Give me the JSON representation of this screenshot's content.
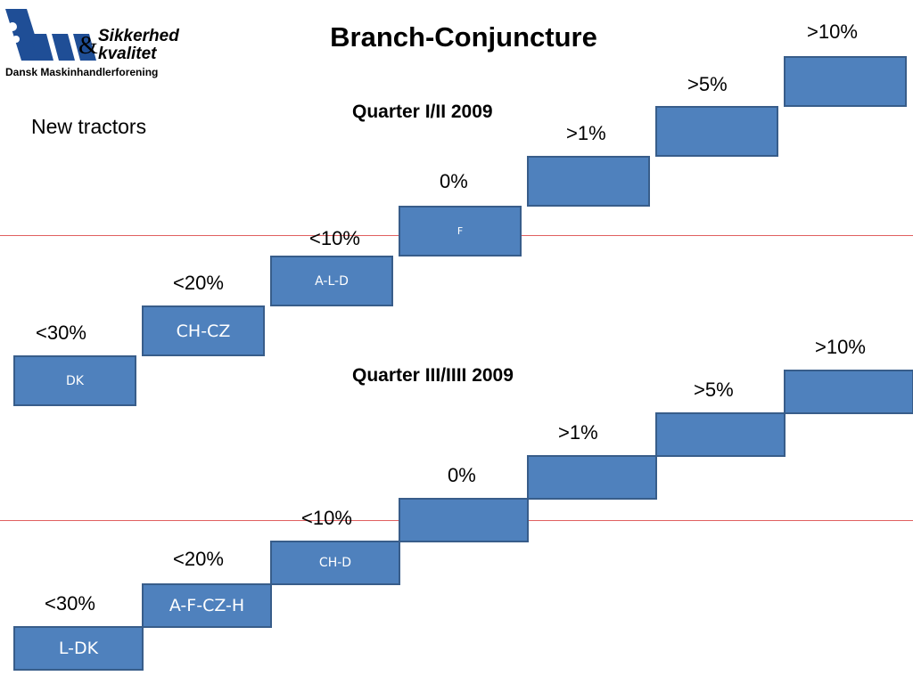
{
  "header": {
    "title": "Branch-Conjuncture",
    "logo_line1": "Sikkerhed",
    "logo_ampersand": "&",
    "logo_line2": "kvalitet",
    "logo_caption": "Dansk Maskinhandlerforening"
  },
  "category": "New tractors",
  "quarters": [
    {
      "label": "Quarter I/II 2009",
      "steps": [
        {
          "threshold": "<30%",
          "countries": "DK"
        },
        {
          "threshold": "<20%",
          "countries": "CH-CZ"
        },
        {
          "threshold": "<10%",
          "countries": "A-L-D"
        },
        {
          "threshold": "0%",
          "countries": "F"
        },
        {
          "threshold": ">1%",
          "countries": ""
        },
        {
          "threshold": ">5%",
          "countries": ""
        },
        {
          "threshold": ">10%",
          "countries": ""
        }
      ]
    },
    {
      "label": "Quarter III/IIII 2009",
      "steps": [
        {
          "threshold": "<30%",
          "countries": "L-DK"
        },
        {
          "threshold": "<20%",
          "countries": "A-F-CZ-H"
        },
        {
          "threshold": "<10%",
          "countries": "CH-D"
        },
        {
          "threshold": "0%",
          "countries": ""
        },
        {
          "threshold": ">1%",
          "countries": ""
        },
        {
          "threshold": ">5%",
          "countries": ""
        },
        {
          "threshold": ">10%",
          "countries": ""
        }
      ]
    }
  ],
  "colors": {
    "step_fill": "#4f81bd",
    "step_border": "#385d8a",
    "reference_line": "#e06060",
    "logo_blue": "#1f4e96"
  }
}
